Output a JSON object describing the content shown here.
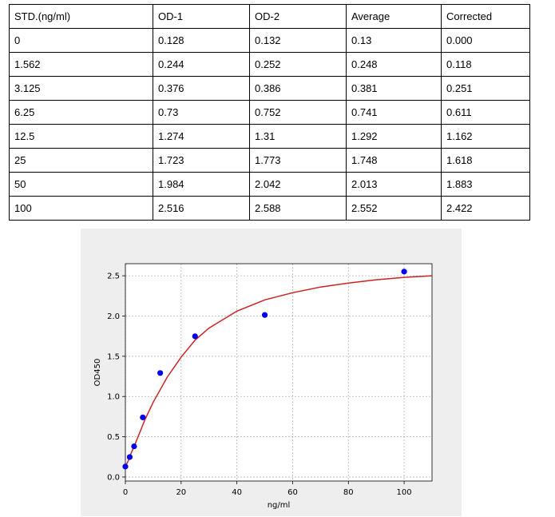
{
  "table": {
    "headers": [
      "STD.(ng/ml)",
      "OD-1",
      "OD-2",
      "Average",
      "Corrected"
    ],
    "rows": [
      [
        "0",
        "0.128",
        "0.132",
        "0.13",
        "0.000"
      ],
      [
        "1.562",
        "0.244",
        "0.252",
        "0.248",
        "0.118"
      ],
      [
        "3.125",
        "0.376",
        "0.386",
        "0.381",
        "0.251"
      ],
      [
        "6.25",
        "0.73",
        "0.752",
        "0.741",
        "0.611"
      ],
      [
        "12.5",
        "1.274",
        "1.31",
        "1.292",
        "1.162"
      ],
      [
        "25",
        "1.723",
        "1.773",
        "1.748",
        "1.618"
      ],
      [
        "50",
        "1.984",
        "2.042",
        "2.013",
        "1.883"
      ],
      [
        "100",
        "2.516",
        "2.588",
        "2.552",
        "2.422"
      ]
    ]
  },
  "chart_data": {
    "type": "scatter",
    "xlabel": "ng/ml",
    "ylabel": "OD450",
    "xlim": [
      0,
      110
    ],
    "ylim": [
      -0.05,
      2.65
    ],
    "xticks": [
      0,
      20,
      40,
      60,
      80,
      100
    ],
    "yticks": [
      0.0,
      0.5,
      1.0,
      1.5,
      2.0,
      2.5
    ],
    "grid": true,
    "points": {
      "x": [
        0,
        1.562,
        3.125,
        6.25,
        12.5,
        25,
        50,
        100
      ],
      "y": [
        0.13,
        0.248,
        0.381,
        0.741,
        1.292,
        1.748,
        2.013,
        2.552
      ],
      "color": "#0000ee"
    },
    "fit": {
      "color": "#cc2222",
      "x": [
        0,
        1,
        2,
        3,
        5,
        7,
        10,
        15,
        20,
        25,
        30,
        40,
        50,
        60,
        70,
        80,
        90,
        100,
        110
      ],
      "y": [
        0.13,
        0.2,
        0.29,
        0.37,
        0.54,
        0.71,
        0.93,
        1.24,
        1.49,
        1.7,
        1.85,
        2.06,
        2.2,
        2.29,
        2.36,
        2.41,
        2.45,
        2.48,
        2.5
      ]
    }
  }
}
